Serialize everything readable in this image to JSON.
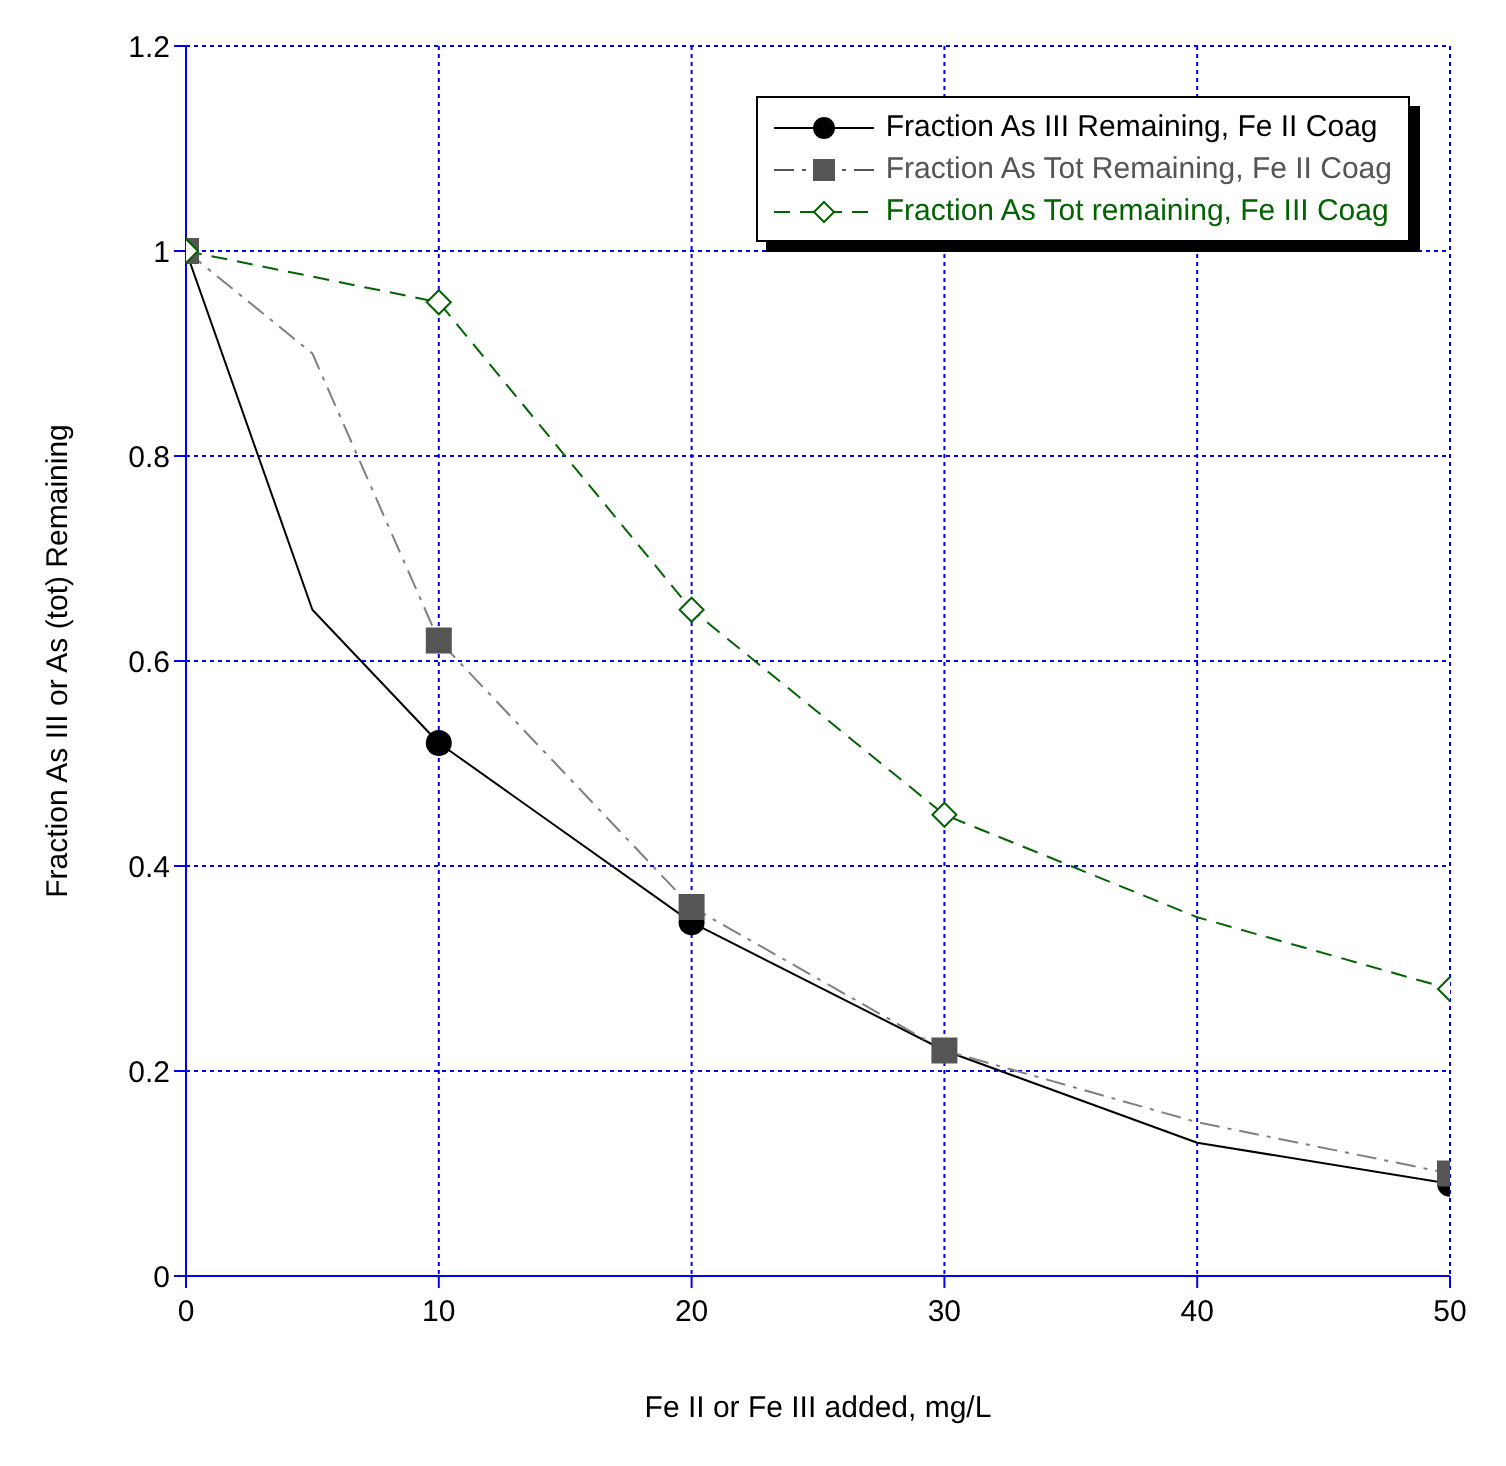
{
  "chart_data": {
    "type": "line",
    "xlabel": "Fe II or Fe III added, mg/L",
    "ylabel": "Fraction As III or As (tot) Remaining",
    "xlim": [
      0,
      50
    ],
    "xticks": [
      0,
      10,
      20,
      30,
      40,
      50
    ],
    "ylim": [
      0,
      1.2
    ],
    "yticks": [
      0,
      0.2,
      0.4,
      0.6,
      0.8,
      1,
      1.2
    ],
    "grid": true,
    "legend": "top right",
    "series": [
      {
        "color": "#000000",
        "line_style": "solid",
        "marker": "none",
        "x": [
          0,
          5,
          10,
          20,
          30,
          40,
          50
        ],
        "values": [
          1,
          0.65,
          0.52,
          0.345,
          0.22,
          0.13,
          0.09
        ]
      },
      {
        "color": "#808080",
        "line_style": "dashdot",
        "marker": "none",
        "x": [
          0,
          5,
          10,
          20,
          30,
          40,
          50
        ],
        "values": [
          1,
          0.9,
          0.62,
          0.36,
          0.22,
          0.15,
          0.1
        ]
      },
      {
        "color": "#006400",
        "line_style": "dashed",
        "marker": "none",
        "x": [
          0,
          10,
          20,
          30,
          40,
          50
        ],
        "values": [
          1,
          0.95,
          0.65,
          0.45,
          0.35,
          0.28
        ]
      },
      {
        "type": "scatter",
        "name": "Fraction As III Remaining, Fe II Coag",
        "color": "#000000",
        "line_style": "solid",
        "marker": "circle",
        "x": [
          10,
          20,
          50
        ],
        "values": [
          0.52,
          0.345,
          0.09
        ]
      },
      {
        "type": "scatter",
        "name": "Fraction As Tot Remaining, Fe II Coag",
        "color": "#555555",
        "line_style": "dashdot",
        "marker": "square",
        "x": [
          0,
          10,
          20,
          30,
          50
        ],
        "values": [
          1,
          0.62,
          0.36,
          0.22,
          0.1
        ]
      },
      {
        "type": "scatter",
        "name": "Fraction As Tot remaining, Fe III Coag",
        "color": "#006400",
        "line_style": "dashed",
        "marker": "diamond",
        "x": [
          0,
          10,
          20,
          30,
          50
        ],
        "values": [
          1,
          0.95,
          0.65,
          0.45,
          0.28
        ]
      }
    ]
  }
}
